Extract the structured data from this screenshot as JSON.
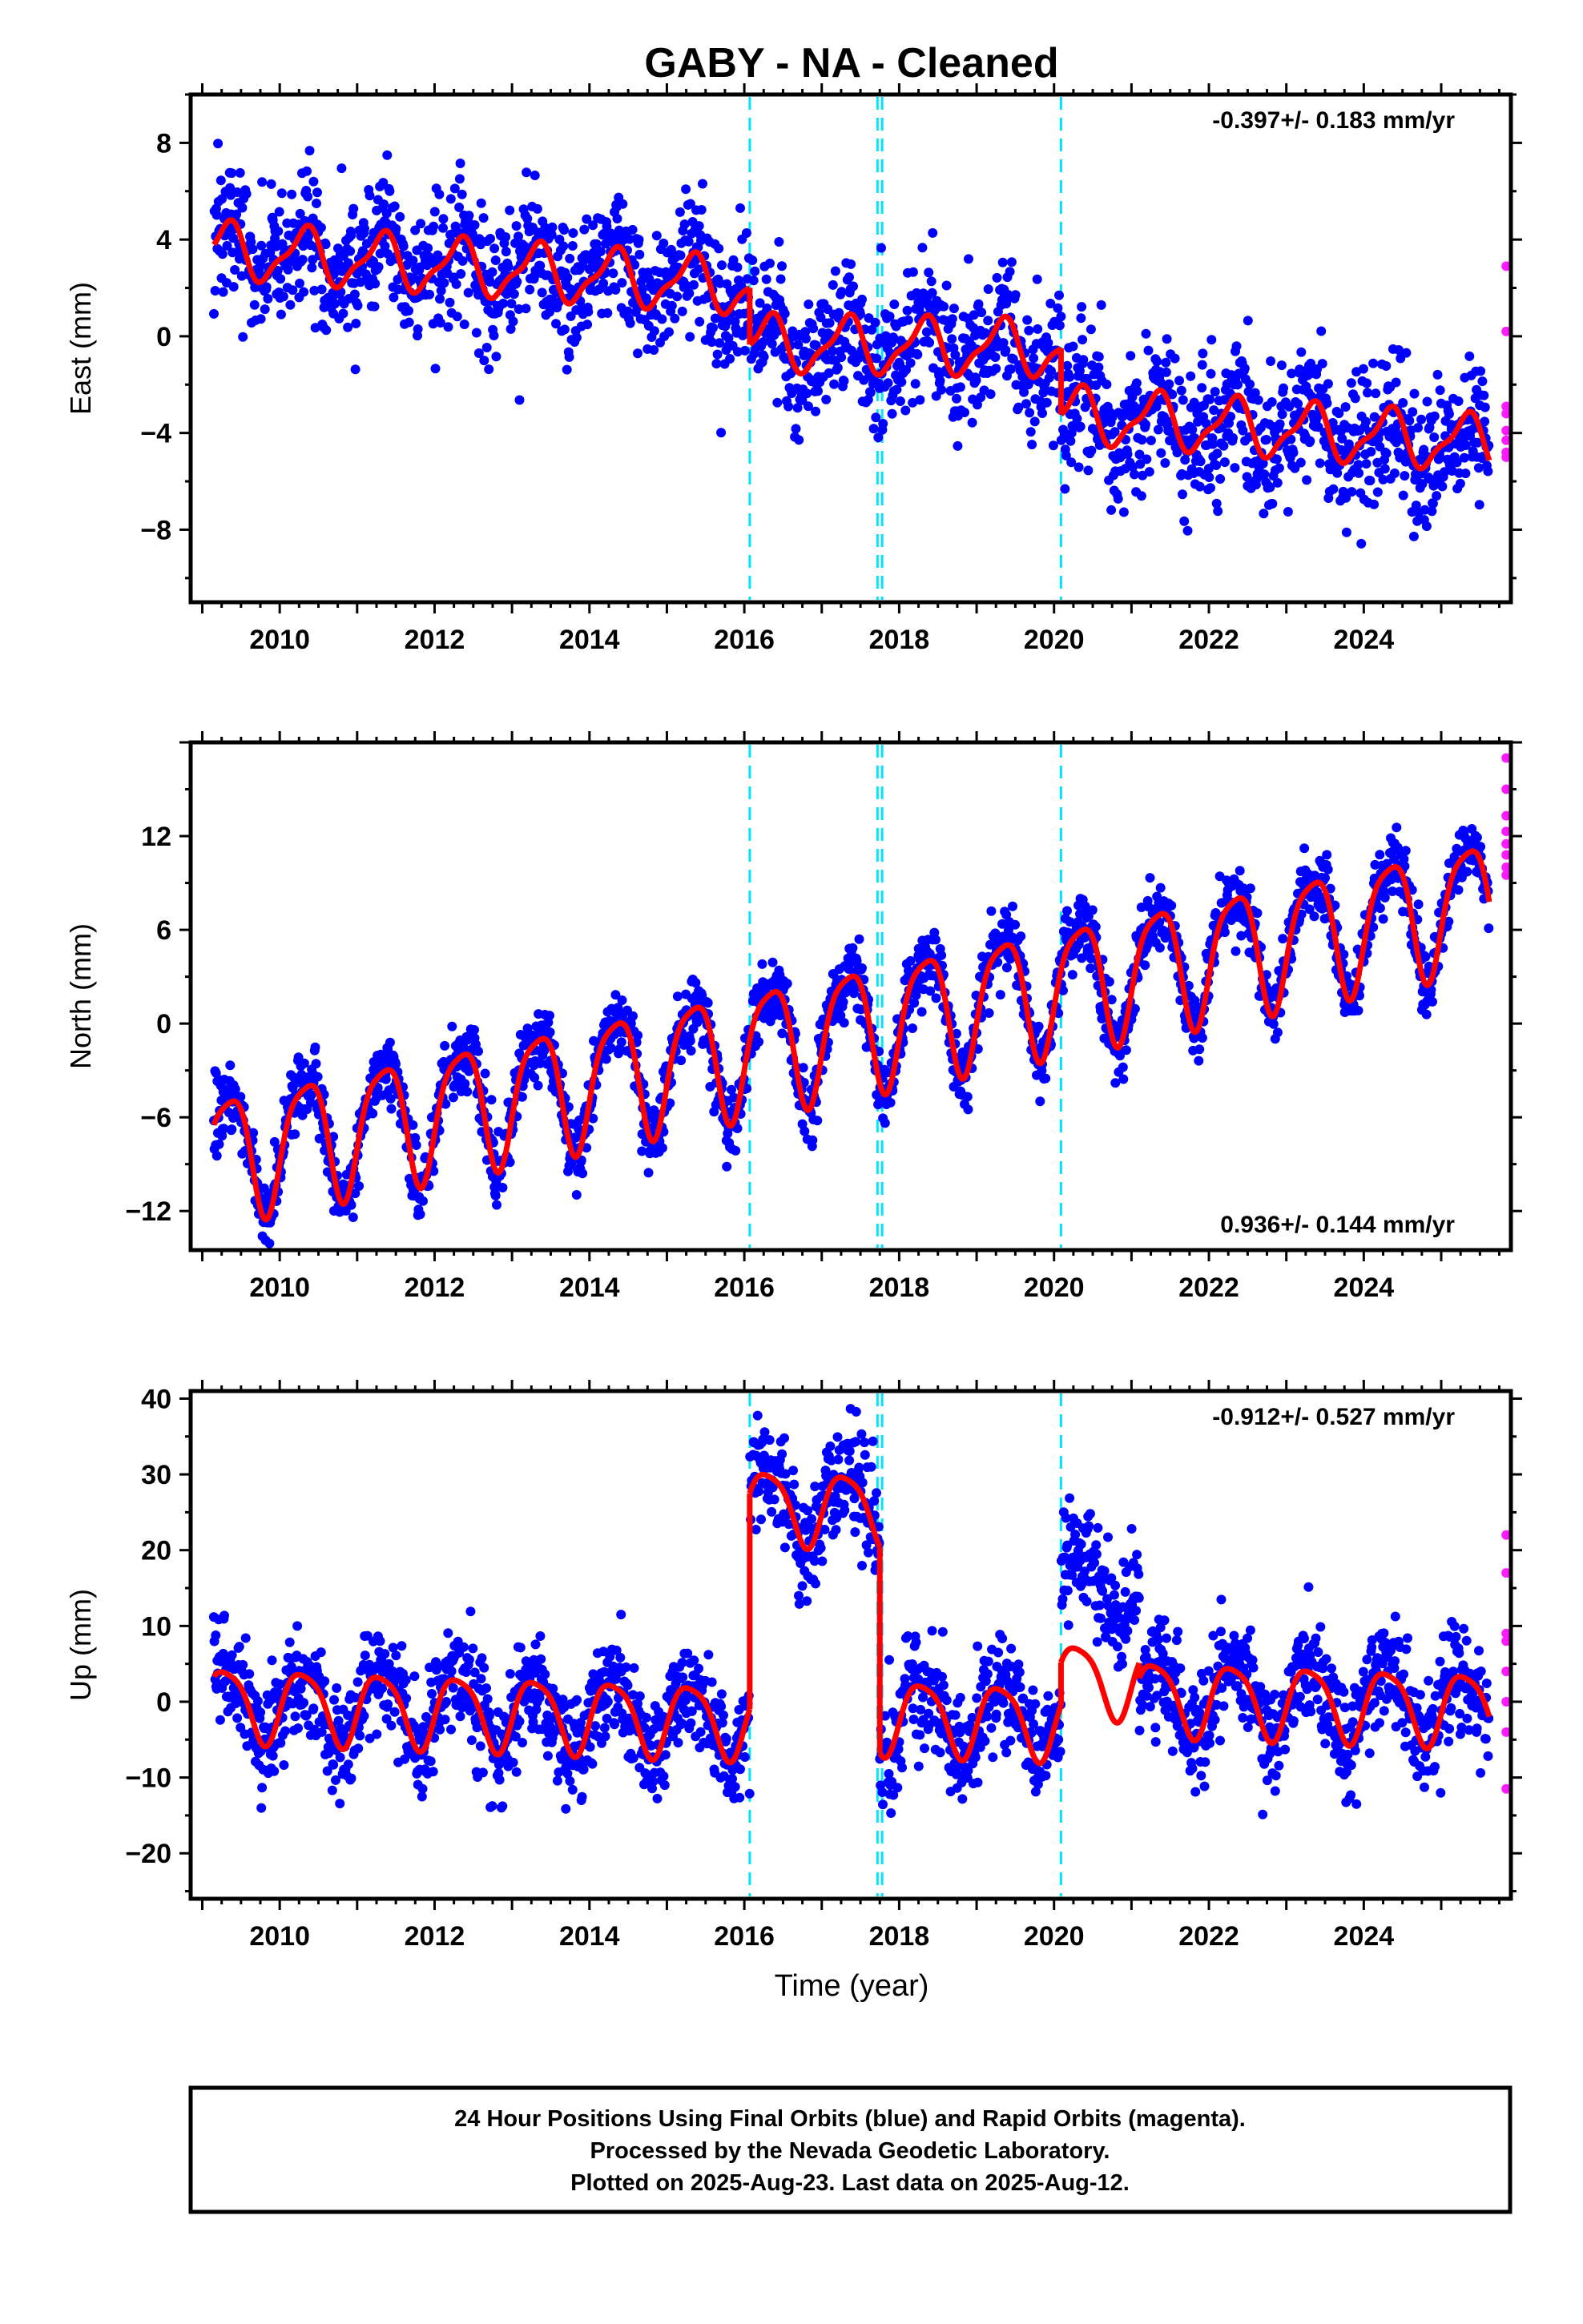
{
  "title": "GABY  - NA - Cleaned",
  "xlabel": "Time (year)",
  "footer": {
    "line1": "24 Hour Positions Using Final Orbits (blue) and Rapid Orbits (magenta).",
    "line2": "Processed by the Nevada Geodetic Laboratory.",
    "line3": "Plotted on 2025-Aug-23. Last data on 2025-Aug-12."
  },
  "colors": {
    "final_orbits": "#0000ff",
    "rapid_orbits": "#ff1aff",
    "model": "#ff0000",
    "events": "#00e5ff",
    "frame": "#000000"
  },
  "chart_data": [
    {
      "type": "scatter",
      "component": "east",
      "ylabel": "East (mm)",
      "rate": "-0.397+/- 0.183 mm/yr",
      "rate_position": "top-right",
      "xlim": [
        2008.85,
        2025.9
      ],
      "ylim": [
        -11.0,
        10.0
      ],
      "x_ticks": [
        2010,
        2012,
        2014,
        2016,
        2018,
        2020,
        2022,
        2024
      ],
      "y_ticks": [
        -8,
        -4,
        0,
        4,
        8
      ],
      "event_lines": [
        2016.07,
        2017.72,
        2017.78,
        2020.09
      ],
      "model": {
        "segments": [
          {
            "from": 2009.15,
            "to": 2016.07,
            "intercept_2009": 3.6,
            "rate": -0.22,
            "annual": [
              -0.4,
              1.0
            ],
            "semiannual": [
              0.2,
              -0.3
            ]
          },
          {
            "from": 2016.07,
            "to": 2020.09,
            "intercept_2009": 0.05,
            "rate": -0.05,
            "annual": [
              -0.4,
              1.0
            ],
            "semiannual": [
              0.2,
              -0.3
            ]
          },
          {
            "from": 2020.09,
            "to": 2025.62,
            "intercept_2009": -0.8,
            "rate": -0.22,
            "annual": [
              -0.4,
              1.0
            ],
            "semiannual": [
              0.2,
              -0.3
            ]
          }
        ]
      },
      "scatter_sigma": 1.4,
      "rapid_points": [
        2.9,
        0.2,
        -2.9,
        -3.2,
        -3.9,
        -4.3,
        -4.8,
        -5.0
      ]
    },
    {
      "type": "scatter",
      "component": "north",
      "ylabel": "North (mm)",
      "rate": "0.936+/- 0.144 mm/yr",
      "rate_position": "bottom-right",
      "xlim": [
        2008.85,
        2025.9
      ],
      "ylim": [
        -14.5,
        18.0
      ],
      "x_ticks": [
        2010,
        2012,
        2014,
        2016,
        2018,
        2020,
        2022,
        2024
      ],
      "y_ticks": [
        -12,
        -6,
        0,
        6,
        12
      ],
      "event_lines": [
        2016.07,
        2017.72,
        2017.78,
        2020.09
      ],
      "model": {
        "segments": [
          {
            "from": 2009.15,
            "to": 2025.62,
            "intercept_2009": -8.6,
            "rate": 1.0,
            "annual": [
              -2.0,
              3.4
            ],
            "semiannual": [
              0.6,
              0.6
            ]
          }
        ]
      },
      "scatter_sigma": 1.1,
      "rapid_points": [
        17.0,
        15.0,
        13.3,
        12.3,
        11.5,
        10.8,
        10.0,
        9.5
      ]
    },
    {
      "type": "scatter",
      "component": "up",
      "ylabel": "Up (mm)",
      "rate": "-0.912+/- 0.527 mm/yr",
      "rate_position": "top-right",
      "xlim": [
        2008.85,
        2025.9
      ],
      "ylim": [
        -26.0,
        41.0
      ],
      "x_ticks": [
        2010,
        2012,
        2014,
        2016,
        2018,
        2020,
        2022,
        2024
      ],
      "y_ticks": [
        -20,
        -10,
        0,
        10,
        20,
        30,
        40
      ],
      "event_lines": [
        2016.07,
        2017.72,
        2017.78,
        2020.09
      ],
      "model": {
        "segments": [
          {
            "from": 2009.15,
            "to": 2016.07,
            "intercept_2009": 0.0,
            "rate": -0.35,
            "annual": [
              -1.5,
              4.5
            ],
            "semiannual": [
              0.5,
              0.8
            ]
          },
          {
            "from": 2016.07,
            "to": 2017.75,
            "intercept_2009": 28.5,
            "rate": -0.35,
            "annual": [
              -1.5,
              4.5
            ],
            "semiannual": [
              0.5,
              0.8
            ]
          },
          {
            "from": 2017.75,
            "to": 2020.09,
            "intercept_2009": 1.3,
            "rate": -0.35,
            "annual": [
              -1.5,
              4.5
            ],
            "semiannual": [
              0.5,
              0.8
            ]
          },
          {
            "from": 2020.09,
            "to": 2021.1,
            "intercept_2009": 7.0,
            "rate": -0.35,
            "annual": [
              -1.5,
              4.5
            ],
            "semiannual": [
              0.5,
              0.8
            ]
          },
          {
            "from": 2021.1,
            "to": 2025.62,
            "intercept_2009": 5.0,
            "rate": -0.35,
            "annual": [
              -1.5,
              4.5
            ],
            "semiannual": [
              0.5,
              0.8
            ]
          }
        ],
        "residual_offsets": [
          {
            "from": 2020.09,
            "to": 2021.1,
            "offset": 12.0
          }
        ]
      },
      "scatter_sigma": 3.6,
      "rapid_points": [
        22.0,
        17.0,
        9.0,
        8.0,
        4.0,
        0.0,
        -4.0,
        -11.5
      ]
    }
  ]
}
